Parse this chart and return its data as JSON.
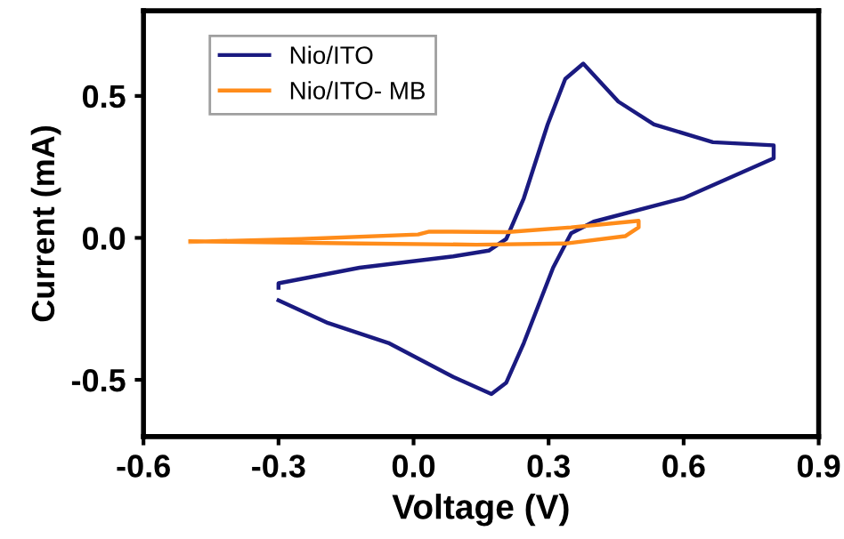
{
  "chart_data": {
    "type": "line",
    "xlabel": "Voltage (V)",
    "ylabel": "Current (mA)",
    "xlim": [
      -0.6,
      0.9
    ],
    "xticks": [
      -0.6,
      -0.3,
      {
        "value": 0,
        "label": "0.0"
      },
      0.3,
      0.6,
      0.9
    ],
    "ylim": [
      -0.7,
      0.8
    ],
    "yticks": [
      -0.5,
      {
        "value": 0,
        "label": "0.0"
      },
      0.5
    ],
    "grid": false,
    "legend": "top left",
    "marker": "none",
    "line_style": "solid",
    "series": [
      {
        "name": "Nio/ITO",
        "color": "#1a1a80",
        "x": [
          -0.3,
          -0.3,
          -0.12,
          0.088,
          0.167,
          0.206,
          0.245,
          0.298,
          0.337,
          0.377,
          0.455,
          0.534,
          0.665,
          0.8,
          0.8,
          0.6,
          0.4,
          0.35,
          0.31,
          0.245,
          0.206,
          0.173,
          0.088,
          -0.056,
          -0.19,
          -0.3
        ],
        "values": [
          -0.176,
          -0.16,
          -0.105,
          -0.065,
          -0.045,
          -0.004,
          0.14,
          0.4,
          0.56,
          0.614,
          0.48,
          0.4,
          0.337,
          0.326,
          0.28,
          0.14,
          0.057,
          0.016,
          -0.105,
          -0.37,
          -0.51,
          -0.55,
          -0.49,
          -0.37,
          -0.3,
          -0.22
        ]
      },
      {
        "name": "Nio/ITO- MB",
        "color": "#ff8c1a",
        "x": [
          -0.496,
          -0.25,
          0.01,
          0.035,
          0.075,
          0.206,
          0.35,
          0.5,
          0.5,
          0.47,
          0.337,
          0.14,
          -0.12,
          -0.496
        ],
        "values": [
          -0.014,
          -0.004,
          0.012,
          0.022,
          0.022,
          0.02,
          0.037,
          0.06,
          0.037,
          0.006,
          -0.02,
          -0.024,
          -0.02,
          -0.012
        ]
      }
    ]
  }
}
